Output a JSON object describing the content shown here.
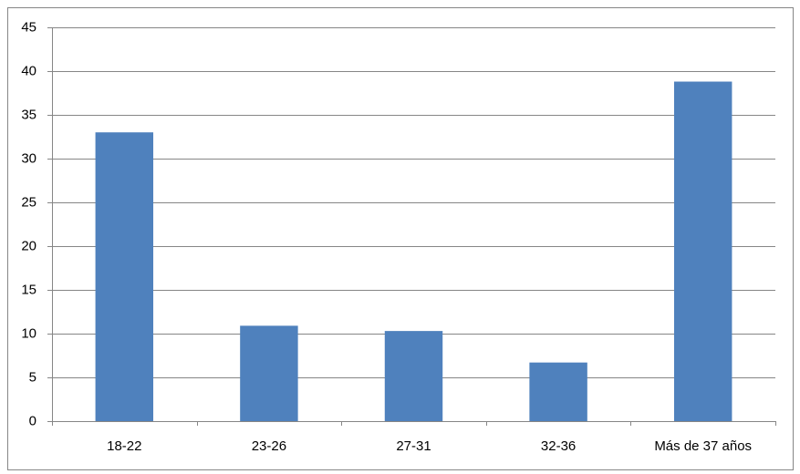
{
  "chart_data": {
    "type": "bar",
    "categories": [
      "18-22",
      "23-26",
      "27-31",
      "32-36",
      "Más de 37 años"
    ],
    "values": [
      33,
      10.9,
      10.3,
      6.7,
      38.8
    ],
    "color": "#4f81bd",
    "ylim": [
      0,
      45
    ],
    "yticks": [
      0,
      5,
      10,
      15,
      20,
      25,
      30,
      35,
      40,
      45
    ],
    "grid": true
  }
}
